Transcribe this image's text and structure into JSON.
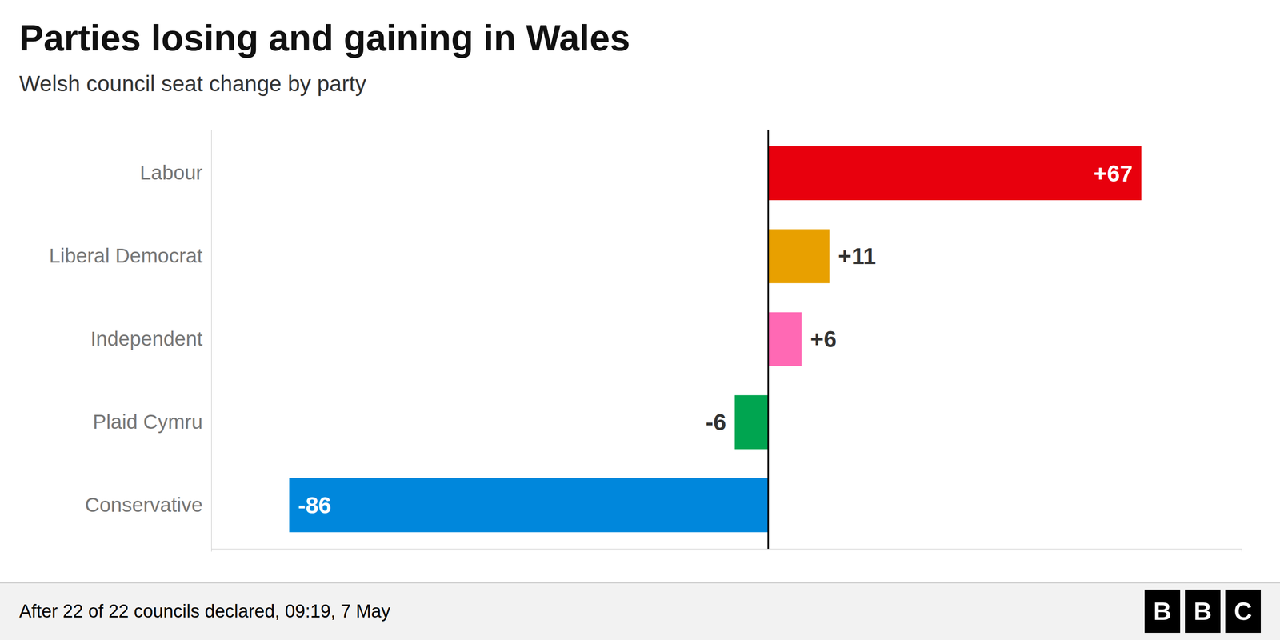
{
  "chart_data": {
    "type": "bar",
    "orientation": "horizontal",
    "title": "Parties losing and gaining in Wales",
    "subtitle": "Welsh council seat change by party",
    "categories": [
      "Labour",
      "Liberal Democrat",
      "Independent",
      "Plaid Cymru",
      "Conservative"
    ],
    "values": [
      67,
      11,
      6,
      -6,
      -86
    ],
    "value_labels": [
      "+67",
      "+11",
      "+6",
      "-6",
      "-86"
    ],
    "colors": [
      "#E8000D",
      "#E8A000",
      "#FF69B4",
      "#00A550",
      "#0087DC"
    ],
    "xlim": [
      -100,
      85
    ],
    "data_labels": true,
    "tick_labels": "y",
    "grid": false,
    "footer": "After 22 of 22 councils declared, 09:19, 7 May",
    "logo": [
      "B",
      "B",
      "C"
    ]
  }
}
